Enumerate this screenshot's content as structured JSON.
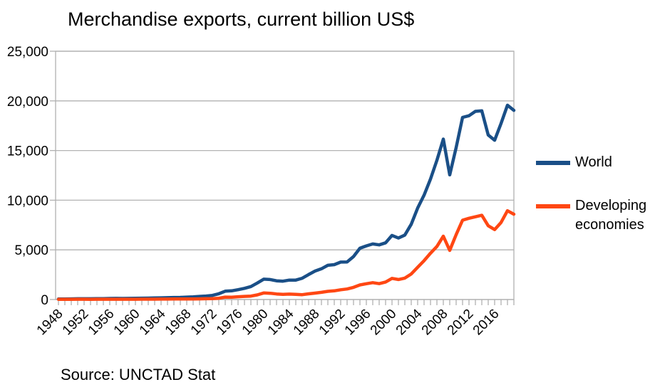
{
  "chart_data": {
    "type": "line",
    "title": "Merchandise exports, current billion US$",
    "source": "Source: UNCTAD Stat",
    "xlabel": "",
    "ylabel": "",
    "ylim": [
      0,
      25000
    ],
    "yticks": [
      0,
      5000,
      10000,
      15000,
      20000,
      25000
    ],
    "y_tick_format": "thousands-comma",
    "xtick_labels": [
      1948,
      1952,
      1956,
      1960,
      1964,
      1968,
      1972,
      1976,
      1980,
      1984,
      1988,
      1992,
      1996,
      2000,
      2004,
      2008,
      2012,
      2016
    ],
    "grid": "horizontal",
    "grid_color": "#b3b3b3",
    "axis_color": "#b0b0b0",
    "background_color": "#ffffff",
    "legend_position": "right",
    "x": [
      1948,
      1949,
      1950,
      1951,
      1952,
      1953,
      1954,
      1955,
      1956,
      1957,
      1958,
      1959,
      1960,
      1961,
      1962,
      1963,
      1964,
      1965,
      1966,
      1967,
      1968,
      1969,
      1970,
      1971,
      1972,
      1973,
      1974,
      1975,
      1976,
      1977,
      1978,
      1979,
      1980,
      1981,
      1982,
      1983,
      1984,
      1985,
      1986,
      1987,
      1988,
      1989,
      1990,
      1991,
      1992,
      1993,
      1994,
      1995,
      1996,
      1997,
      1998,
      1999,
      2000,
      2001,
      2002,
      2003,
      2004,
      2005,
      2006,
      2007,
      2008,
      2009,
      2010,
      2011,
      2012,
      2013,
      2014,
      2015,
      2016,
      2017,
      2018,
      2019
    ],
    "series": [
      {
        "name": "World",
        "color": "#1a4f87",
        "values": [
          59,
          59,
          62,
          82,
          81,
          82,
          85,
          94,
          104,
          112,
          109,
          116,
          130,
          136,
          143,
          155,
          173,
          188,
          205,
          215,
          240,
          274,
          318,
          354,
          418,
          580,
          841,
          876,
          991,
          1128,
          1306,
          1659,
          2050,
          2014,
          1884,
          1847,
          1956,
          1953,
          2139,
          2517,
          2868,
          3098,
          3449,
          3510,
          3766,
          3780,
          4326,
          5168,
          5400,
          5591,
          5501,
          5711,
          6452,
          6191,
          6492,
          7580,
          9215,
          10507,
          12125,
          14020,
          16150,
          12550,
          15300,
          18340,
          18500,
          18950,
          19000,
          16560,
          16040,
          17730,
          19560,
          19050
        ]
      },
      {
        "name": "Developing economies",
        "color": "#ff4713",
        "values": [
          17,
          17,
          21,
          28,
          26,
          25,
          26,
          27,
          29,
          30,
          28,
          30,
          32,
          33,
          35,
          38,
          41,
          44,
          47,
          50,
          54,
          60,
          68,
          77,
          91,
          131,
          245,
          238,
          279,
          318,
          341,
          465,
          661,
          633,
          562,
          523,
          546,
          519,
          485,
          575,
          643,
          720,
          827,
          872,
          982,
          1063,
          1225,
          1468,
          1590,
          1701,
          1601,
          1763,
          2130,
          2012,
          2159,
          2572,
          3247,
          3913,
          4662,
          5344,
          6374,
          4944,
          6530,
          7990,
          8180,
          8330,
          8480,
          7430,
          7040,
          7760,
          8940,
          8590
        ]
      }
    ]
  }
}
